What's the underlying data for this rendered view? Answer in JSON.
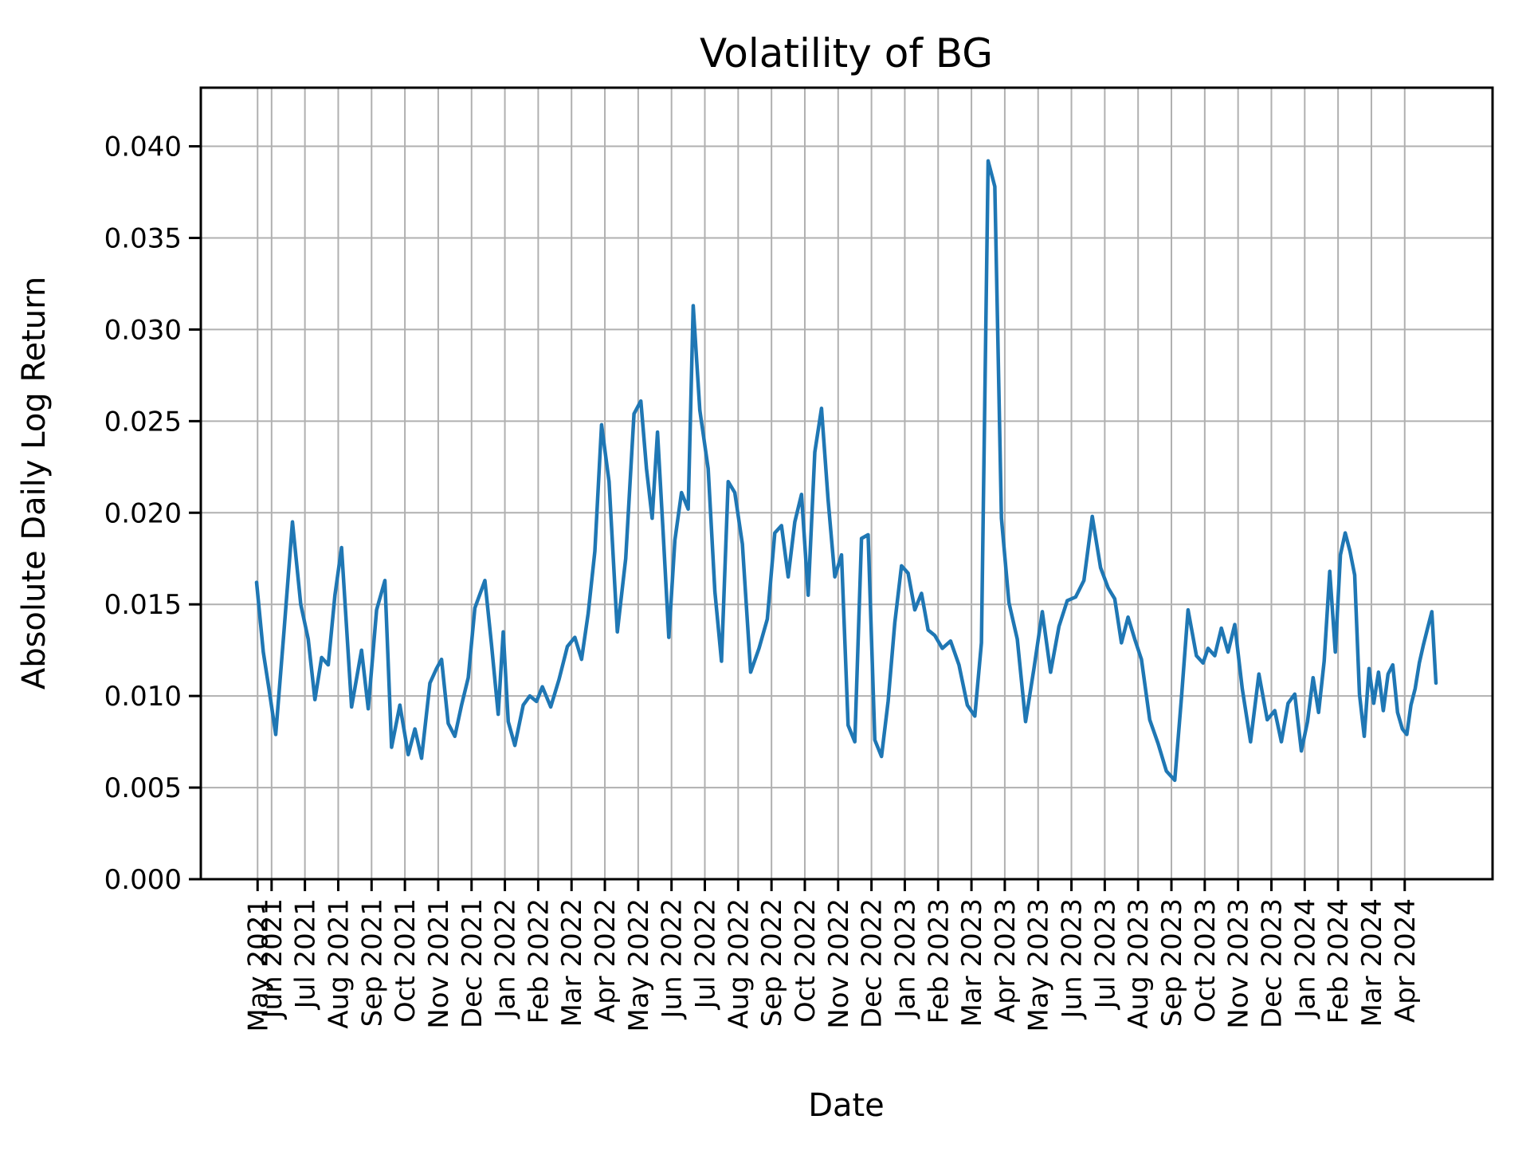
{
  "title": "Volatility of BG",
  "axes": {
    "xlabel": "Date",
    "ylabel": "Absolute Daily Log Return",
    "y_ticks": [
      {
        "label": "0.000",
        "v": 0.0
      },
      {
        "label": "0.005",
        "v": 0.005
      },
      {
        "label": "0.010",
        "v": 0.01
      },
      {
        "label": "0.015",
        "v": 0.015
      },
      {
        "label": "0.020",
        "v": 0.02
      },
      {
        "label": "0.025",
        "v": 0.025
      },
      {
        "label": "0.030",
        "v": 0.03
      },
      {
        "label": "0.035",
        "v": 0.035
      },
      {
        "label": "0.040",
        "v": 0.04
      }
    ],
    "x_ticks": [
      {
        "label": "May 2021",
        "t": 0.58
      },
      {
        "label": "Jun 2021",
        "t": 1
      },
      {
        "label": "Jul 2021",
        "t": 2
      },
      {
        "label": "Aug 2021",
        "t": 3
      },
      {
        "label": "Sep 2021",
        "t": 4
      },
      {
        "label": "Oct 2021",
        "t": 5
      },
      {
        "label": "Nov 2021",
        "t": 6
      },
      {
        "label": "Dec 2021",
        "t": 7
      },
      {
        "label": "Jan 2022",
        "t": 8
      },
      {
        "label": "Feb 2022",
        "t": 9
      },
      {
        "label": "Mar 2022",
        "t": 10
      },
      {
        "label": "Apr 2022",
        "t": 11
      },
      {
        "label": "May 2022",
        "t": 12
      },
      {
        "label": "Jun 2022",
        "t": 13
      },
      {
        "label": "Jul 2022",
        "t": 14
      },
      {
        "label": "Aug 2022",
        "t": 15
      },
      {
        "label": "Sep 2022",
        "t": 16
      },
      {
        "label": "Oct 2022",
        "t": 17
      },
      {
        "label": "Nov 2022",
        "t": 18
      },
      {
        "label": "Dec 2022",
        "t": 19
      },
      {
        "label": "Jan 2023",
        "t": 20
      },
      {
        "label": "Feb 2023",
        "t": 21
      },
      {
        "label": "Mar 2023",
        "t": 22
      },
      {
        "label": "Apr 2023",
        "t": 23
      },
      {
        "label": "May 2023",
        "t": 24
      },
      {
        "label": "Jun 2023",
        "t": 25
      },
      {
        "label": "Jul 2023",
        "t": 26
      },
      {
        "label": "Aug 2023",
        "t": 27
      },
      {
        "label": "Sep 2023",
        "t": 28
      },
      {
        "label": "Oct 2023",
        "t": 29
      },
      {
        "label": "Nov 2023",
        "t": 30
      },
      {
        "label": "Dec 2023",
        "t": 31
      },
      {
        "label": "Jan 2024",
        "t": 32
      },
      {
        "label": "Feb 2024",
        "t": 33
      },
      {
        "label": "Mar 2024",
        "t": 34
      },
      {
        "label": "Apr 2024",
        "t": 35
      }
    ]
  },
  "chart_data": {
    "type": "line",
    "title": "Volatility of BG",
    "xlabel": "Date",
    "ylabel": "Absolute Daily Log Return",
    "legend": null,
    "grid": true,
    "grid_color": "#b0b0b0",
    "line_color": "#1f77b4",
    "ylim": [
      0.0,
      0.0432
    ],
    "x_unit": "months_since_2021_05_01",
    "t_first": 0.55,
    "t_last": 35.938,
    "points": [
      [
        0.55,
        0.0162
      ],
      [
        0.75,
        0.0124
      ],
      [
        0.92,
        0.0104
      ],
      [
        1.125,
        0.0079
      ],
      [
        1.375,
        0.0136
      ],
      [
        1.625,
        0.0195
      ],
      [
        1.875,
        0.015
      ],
      [
        2.1,
        0.0131
      ],
      [
        2.3,
        0.0098
      ],
      [
        2.5,
        0.0121
      ],
      [
        2.7,
        0.0117
      ],
      [
        2.9,
        0.0155
      ],
      [
        3.1,
        0.0181
      ],
      [
        3.4,
        0.0094
      ],
      [
        3.7,
        0.0125
      ],
      [
        3.9,
        0.0093
      ],
      [
        4.15,
        0.0147
      ],
      [
        4.4,
        0.0163
      ],
      [
        4.6,
        0.0072
      ],
      [
        4.85,
        0.0095
      ],
      [
        5.1,
        0.0068
      ],
      [
        5.3,
        0.0082
      ],
      [
        5.5,
        0.0066
      ],
      [
        5.75,
        0.0107
      ],
      [
        5.95,
        0.0115
      ],
      [
        6.1,
        0.012
      ],
      [
        6.3,
        0.0085
      ],
      [
        6.5,
        0.0078
      ],
      [
        6.7,
        0.0095
      ],
      [
        6.9,
        0.011
      ],
      [
        7.1,
        0.0148
      ],
      [
        7.4,
        0.0163
      ],
      [
        7.6,
        0.0128
      ],
      [
        7.8,
        0.009
      ],
      [
        7.95,
        0.0135
      ],
      [
        8.1,
        0.0086
      ],
      [
        8.3,
        0.0073
      ],
      [
        8.55,
        0.0095
      ],
      [
        8.75,
        0.01
      ],
      [
        8.95,
        0.0097
      ],
      [
        9.125,
        0.0105
      ],
      [
        9.375,
        0.0094
      ],
      [
        9.625,
        0.0109
      ],
      [
        9.875,
        0.0127
      ],
      [
        10.1,
        0.0132
      ],
      [
        10.3,
        0.012
      ],
      [
        10.5,
        0.0145
      ],
      [
        10.7,
        0.0179
      ],
      [
        10.9,
        0.0248
      ],
      [
        11.125,
        0.0217
      ],
      [
        11.375,
        0.0135
      ],
      [
        11.625,
        0.0175
      ],
      [
        11.875,
        0.0254
      ],
      [
        12.08,
        0.0261
      ],
      [
        12.25,
        0.0224
      ],
      [
        12.42,
        0.0197
      ],
      [
        12.58,
        0.0244
      ],
      [
        12.75,
        0.0189
      ],
      [
        12.92,
        0.0132
      ],
      [
        13.1,
        0.0185
      ],
      [
        13.3,
        0.0211
      ],
      [
        13.5,
        0.0202
      ],
      [
        13.65,
        0.0313
      ],
      [
        13.85,
        0.0256
      ],
      [
        14.1,
        0.0224
      ],
      [
        14.3,
        0.0157
      ],
      [
        14.5,
        0.0119
      ],
      [
        14.7,
        0.0217
      ],
      [
        14.9,
        0.0211
      ],
      [
        15.125,
        0.0183
      ],
      [
        15.375,
        0.0113
      ],
      [
        15.625,
        0.0126
      ],
      [
        15.875,
        0.0142
      ],
      [
        16.1,
        0.0189
      ],
      [
        16.3,
        0.0193
      ],
      [
        16.5,
        0.0165
      ],
      [
        16.7,
        0.0195
      ],
      [
        16.9,
        0.021
      ],
      [
        17.1,
        0.0155
      ],
      [
        17.3,
        0.0233
      ],
      [
        17.5,
        0.0257
      ],
      [
        17.7,
        0.0207
      ],
      [
        17.9,
        0.0165
      ],
      [
        18.1,
        0.0177
      ],
      [
        18.3,
        0.0084
      ],
      [
        18.5,
        0.0075
      ],
      [
        18.7,
        0.0186
      ],
      [
        18.9,
        0.0188
      ],
      [
        19.1,
        0.0076
      ],
      [
        19.3,
        0.0067
      ],
      [
        19.5,
        0.0097
      ],
      [
        19.7,
        0.014
      ],
      [
        19.9,
        0.0171
      ],
      [
        20.1,
        0.0167
      ],
      [
        20.3,
        0.0147
      ],
      [
        20.5,
        0.0156
      ],
      [
        20.7,
        0.0136
      ],
      [
        20.9,
        0.0133
      ],
      [
        21.125,
        0.0126
      ],
      [
        21.375,
        0.013
      ],
      [
        21.625,
        0.0117
      ],
      [
        21.875,
        0.0095
      ],
      [
        22.1,
        0.0089
      ],
      [
        22.3,
        0.0129
      ],
      [
        22.5,
        0.0392
      ],
      [
        22.7,
        0.0378
      ],
      [
        22.9,
        0.0197
      ],
      [
        23.125,
        0.0151
      ],
      [
        23.375,
        0.0131
      ],
      [
        23.625,
        0.0086
      ],
      [
        23.875,
        0.0115
      ],
      [
        24.125,
        0.0146
      ],
      [
        24.375,
        0.0113
      ],
      [
        24.625,
        0.0138
      ],
      [
        24.875,
        0.0152
      ],
      [
        25.125,
        0.0154
      ],
      [
        25.375,
        0.0163
      ],
      [
        25.625,
        0.0198
      ],
      [
        25.875,
        0.017
      ],
      [
        26.1,
        0.0159
      ],
      [
        26.3,
        0.0153
      ],
      [
        26.5,
        0.0129
      ],
      [
        26.7,
        0.0143
      ],
      [
        26.9,
        0.0131
      ],
      [
        27.1,
        0.012
      ],
      [
        27.35,
        0.0087
      ],
      [
        27.6,
        0.0074
      ],
      [
        27.85,
        0.0059
      ],
      [
        28.1,
        0.0054
      ],
      [
        28.3,
        0.0099
      ],
      [
        28.5,
        0.0147
      ],
      [
        28.75,
        0.0122
      ],
      [
        28.95,
        0.0118
      ],
      [
        29.1,
        0.0126
      ],
      [
        29.3,
        0.0122
      ],
      [
        29.5,
        0.0137
      ],
      [
        29.7,
        0.0124
      ],
      [
        29.9,
        0.0139
      ],
      [
        30.125,
        0.0104
      ],
      [
        30.375,
        0.0075
      ],
      [
        30.625,
        0.0112
      ],
      [
        30.875,
        0.0087
      ],
      [
        31.1,
        0.0092
      ],
      [
        31.3,
        0.0075
      ],
      [
        31.5,
        0.0096
      ],
      [
        31.7,
        0.0101
      ],
      [
        31.9,
        0.007
      ],
      [
        32.083,
        0.0086
      ],
      [
        32.25,
        0.011
      ],
      [
        32.417,
        0.0091
      ],
      [
        32.583,
        0.0119
      ],
      [
        32.75,
        0.0168
      ],
      [
        32.917,
        0.0124
      ],
      [
        33.071,
        0.0177
      ],
      [
        33.214,
        0.0189
      ],
      [
        33.357,
        0.0179
      ],
      [
        33.5,
        0.0166
      ],
      [
        33.643,
        0.0101
      ],
      [
        33.786,
        0.0078
      ],
      [
        33.929,
        0.0115
      ],
      [
        34.071,
        0.0096
      ],
      [
        34.214,
        0.0113
      ],
      [
        34.357,
        0.0092
      ],
      [
        34.5,
        0.0112
      ],
      [
        34.643,
        0.0117
      ],
      [
        34.786,
        0.0091
      ],
      [
        34.929,
        0.0082
      ],
      [
        35.063,
        0.0079
      ],
      [
        35.188,
        0.0095
      ],
      [
        35.313,
        0.0104
      ],
      [
        35.438,
        0.0118
      ],
      [
        35.563,
        0.0128
      ],
      [
        35.688,
        0.0137
      ],
      [
        35.813,
        0.0146
      ],
      [
        35.938,
        0.0107
      ]
    ]
  }
}
